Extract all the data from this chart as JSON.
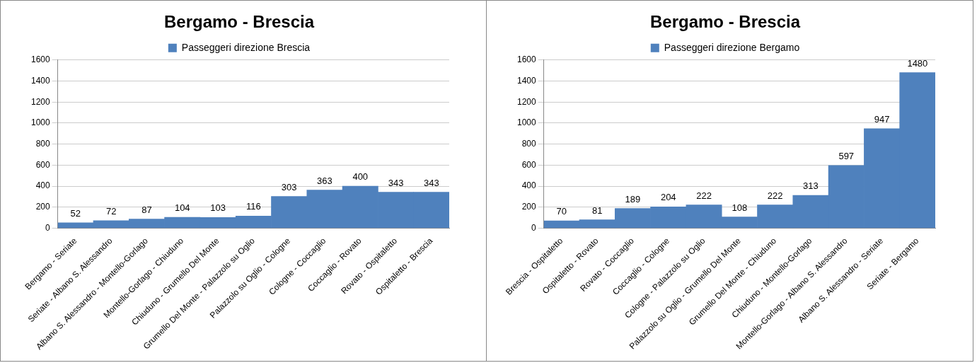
{
  "chart_data": [
    {
      "type": "bar",
      "title": "Bergamo - Brescia",
      "categories": [
        "Bergamo - Seriate",
        "Seriate - Albano S. Alessandro",
        "Albano S. Alessandro - Montello-Gorlago",
        "Montello-Gorlago - Chiuduno",
        "Chiuduno - Grumello Del Monte",
        "Grumello Del Monte - Palazzolo su Oglio",
        "Palazzolo su Oglio - Cologne",
        "Cologne - Coccaglio",
        "Coccaglio - Rovato",
        "Rovato - Ospitaletto",
        "Ospitaletto - Brescia"
      ],
      "series": [
        {
          "name": "Passeggeri direzione Brescia",
          "color": "#4f81bd",
          "values": [
            52,
            72,
            87,
            104,
            103,
            116,
            303,
            363,
            400,
            343,
            343
          ]
        }
      ],
      "ylim": [
        0,
        1600
      ],
      "yticks": [
        0,
        200,
        400,
        600,
        800,
        1000,
        1200,
        1400,
        1600
      ],
      "grid": "y",
      "legend": "top",
      "data_labels": true
    },
    {
      "type": "bar",
      "title": "Bergamo - Brescia",
      "categories": [
        "Brescia - Ospitaletto",
        "Ospitaletto - Rovato",
        "Rovato - Coccaglio",
        "Coccaglio - Cologne",
        "Cologne - Palazzolo su Oglio",
        "Palazzolo su Oglio - Grumello Del Monte",
        "Grumello Del Monte - Chiuduno",
        "Chiuduno - Montello-Gorlago",
        "Montello-Gorlago - Albano S. Alessandro",
        "Albano S. Alessandro - Seriate",
        "Seriate - Bergamo"
      ],
      "series": [
        {
          "name": "Passeggeri direzione Bergamo",
          "color": "#4f81bd",
          "values": [
            70,
            81,
            189,
            204,
            222,
            108,
            222,
            313,
            597,
            947,
            1480
          ]
        }
      ],
      "ylim": [
        0,
        1600
      ],
      "yticks": [
        0,
        200,
        400,
        600,
        800,
        1000,
        1200,
        1400,
        1600
      ],
      "grid": "y",
      "legend": "top",
      "data_labels": true
    }
  ]
}
